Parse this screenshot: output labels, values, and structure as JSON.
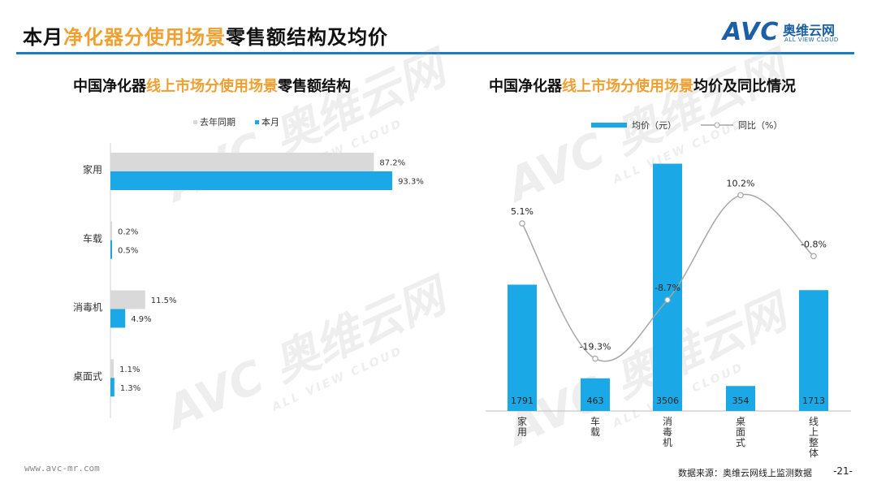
{
  "header": {
    "title_pre": "本月",
    "title_hl": "净化器分使用场景",
    "title_post": "零售额结构及均价"
  },
  "logo": {
    "main": "AVC",
    "cn": "奥维云网",
    "en": "ALL VIEW CLOUD"
  },
  "left_chart": {
    "title_pre": "中国净化器",
    "title_hl": "线上市场分使用场景",
    "title_post": "零售额结构"
  },
  "right_chart": {
    "title_pre": "中国净化器",
    "title_hl": "线上市场分使用场景",
    "title_post": "均价及同比情况"
  },
  "chart_data": [
    {
      "type": "bar",
      "orientation": "horizontal",
      "categories": [
        "家用",
        "车载",
        "消毒机",
        "桌面式"
      ],
      "series": [
        {
          "name": "去年同期",
          "values": [
            87.2,
            0.2,
            11.5,
            1.1
          ],
          "labels": [
            "87.2%",
            "0.2%",
            "11.5%",
            "1.1%"
          ],
          "color": "#d9d9d9"
        },
        {
          "name": "本月",
          "values": [
            93.3,
            0.5,
            4.9,
            1.3
          ],
          "labels": [
            "93.3%",
            "0.5%",
            "4.9%",
            "1.3%"
          ],
          "color": "#1aa9e6"
        }
      ],
      "xlim": [
        0,
        100
      ],
      "legend": "top",
      "grid": false
    },
    {
      "type": "bar",
      "categories": [
        "家用",
        "车载",
        "消毒机",
        "桌面式",
        "线上整体"
      ],
      "series": [
        {
          "name": "均价（元）",
          "values": [
            1791,
            463,
            3506,
            354,
            1713
          ],
          "labels": [
            "1791",
            "463",
            "3506",
            "354",
            "1713"
          ],
          "color": "#1aa9e6"
        },
        {
          "name": "同比（%）",
          "type": "line",
          "values": [
            5.1,
            -19.3,
            -8.7,
            10.2,
            -0.8
          ],
          "labels": [
            "5.1%",
            "-19.3%",
            "-8.7%",
            "10.2%",
            "-0.8%"
          ],
          "color": "#a6a6a6"
        }
      ],
      "ylim": [
        0,
        3800
      ],
      "y2lim": [
        -22,
        12
      ],
      "legend": "top",
      "grid": false
    }
  ],
  "footer": {
    "website": "www.avc-mr.com",
    "source": "数据来源：奥维云网线上监测数据",
    "page": "-21-"
  },
  "watermark": {
    "main": "AVC 奥维云网",
    "sub": "ALL VIEW CLOUD"
  }
}
